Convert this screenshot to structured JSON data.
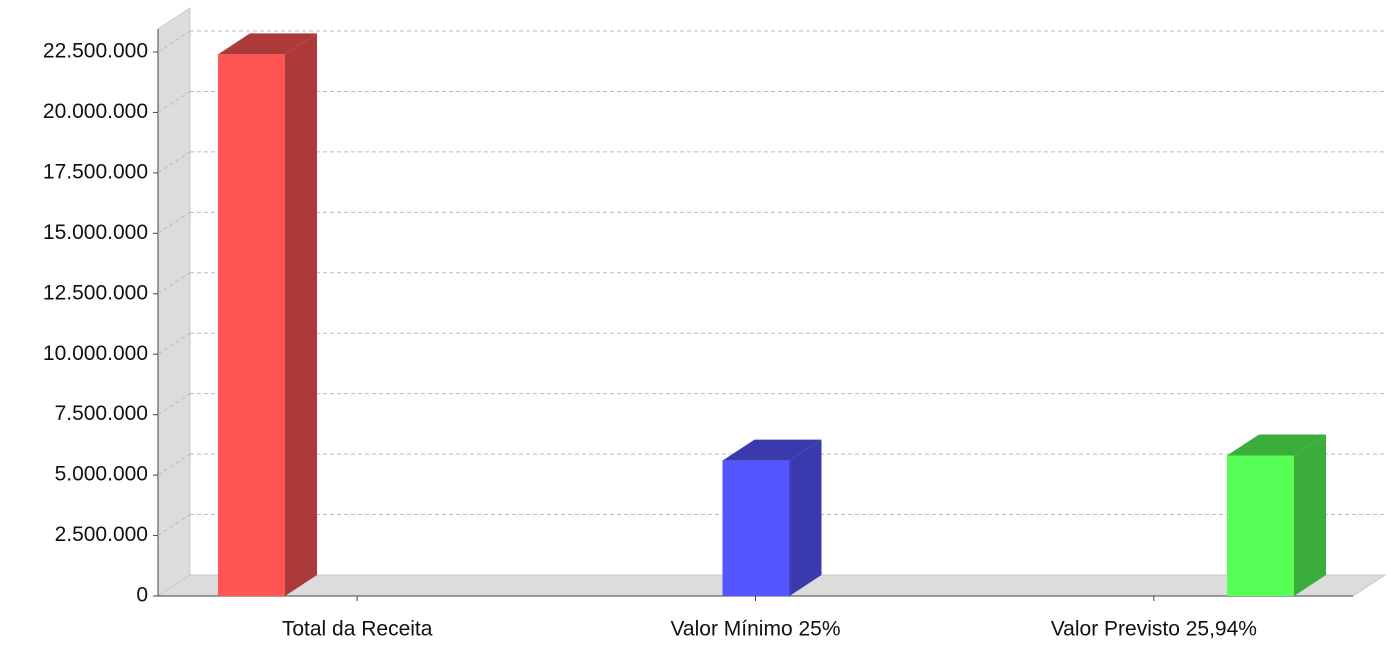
{
  "chart_data": {
    "type": "bar3d",
    "categories": [
      "Total da Receita",
      "Valor Mínimo 25%",
      "Valor Previsto 25,94%"
    ],
    "values": [
      22400000,
      5600000,
      5810000
    ],
    "colors": [
      "#ff5555",
      "#5555ff",
      "#55ff55"
    ],
    "ylim": [
      0,
      22500000
    ],
    "yticks": [
      0,
      {
        "value": 2500000,
        "label": "2.500.000"
      },
      {
        "value": 5000000,
        "label": "5.000.000"
      },
      {
        "value": 7500000,
        "label": "7.500.000"
      },
      {
        "value": 10000000,
        "label": "10.000.000"
      },
      {
        "value": 12500000,
        "label": "12.500.000"
      },
      {
        "value": 15000000,
        "label": "15.000.000"
      },
      {
        "value": 17500000,
        "label": "17.500.000"
      },
      {
        "value": 20000000,
        "label": "20.000.000"
      },
      {
        "value": 22500000,
        "label": "22.500.000"
      }
    ],
    "grid": true
  }
}
